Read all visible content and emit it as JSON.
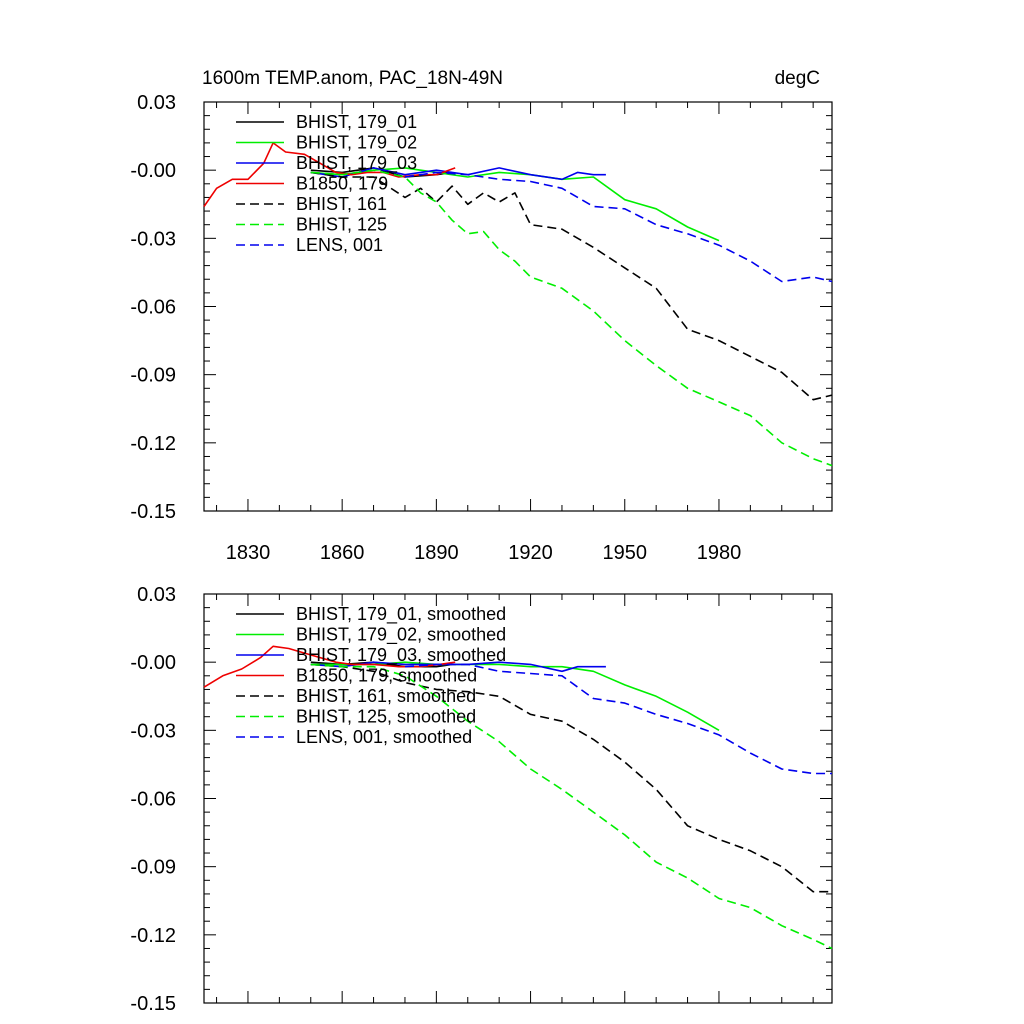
{
  "title_left": "1600m TEMP.anom, PAC_18N-49N",
  "title_right": "degC",
  "chart_data": [
    {
      "type": "line",
      "panel": "top",
      "ylim": [
        -0.15,
        0.03
      ],
      "xlim": [
        1816,
        2016
      ],
      "yticks": [
        0.03,
        -0.0,
        -0.03,
        -0.06,
        -0.09,
        -0.12,
        -0.15
      ],
      "ytick_labels": [
        "0.03",
        "-0.00",
        "-0.03",
        "-0.06",
        "-0.09",
        "-0.12",
        "-0.15"
      ],
      "xticks": [
        1830,
        1860,
        1890,
        1920,
        1950,
        1980
      ],
      "xtick_labels": [
        "1830",
        "1860",
        "1890",
        "1920",
        "1950",
        "1980"
      ],
      "grid": false,
      "legend_position": "top-left",
      "series": [
        {
          "name": "BHIST, 179_01",
          "color": "#000000",
          "dash": "solid",
          "points": [
            [
              1850,
              0.0
            ],
            [
              1860,
              -0.001
            ],
            [
              1870,
              0.001
            ],
            [
              1880,
              -0.003
            ],
            [
              1890,
              -0.002
            ],
            [
              1895,
              -0.001
            ]
          ]
        },
        {
          "name": "BHIST, 179_02",
          "color": "#00ee00",
          "dash": "solid",
          "points": [
            [
              1850,
              -0.001
            ],
            [
              1860,
              -0.002
            ],
            [
              1870,
              0.0
            ],
            [
              1880,
              0.001
            ],
            [
              1890,
              -0.001
            ],
            [
              1900,
              -0.003
            ],
            [
              1910,
              -0.001
            ],
            [
              1920,
              -0.002
            ],
            [
              1930,
              -0.004
            ],
            [
              1940,
              -0.003
            ],
            [
              1950,
              -0.013
            ],
            [
              1960,
              -0.017
            ],
            [
              1970,
              -0.025
            ],
            [
              1980,
              -0.031
            ]
          ]
        },
        {
          "name": "BHIST, 179_03",
          "color": "#0000ee",
          "dash": "solid",
          "points": [
            [
              1850,
              -0.001
            ],
            [
              1860,
              -0.003
            ],
            [
              1870,
              0.001
            ],
            [
              1880,
              -0.002
            ],
            [
              1890,
              0.0
            ],
            [
              1900,
              -0.002
            ],
            [
              1910,
              0.001
            ],
            [
              1920,
              -0.002
            ],
            [
              1930,
              -0.004
            ],
            [
              1935,
              -0.001
            ],
            [
              1940,
              -0.002
            ],
            [
              1944,
              -0.002
            ]
          ]
        },
        {
          "name": "B1850, 179",
          "color": "#ee0000",
          "dash": "solid",
          "points": [
            [
              1816,
              -0.016
            ],
            [
              1820,
              -0.008
            ],
            [
              1825,
              -0.004
            ],
            [
              1830,
              -0.004
            ],
            [
              1835,
              0.003
            ],
            [
              1838,
              0.012
            ],
            [
              1842,
              0.008
            ],
            [
              1848,
              0.007
            ],
            [
              1853,
              0.003
            ],
            [
              1858,
              -0.001
            ],
            [
              1863,
              -0.002
            ],
            [
              1868,
              -0.001
            ],
            [
              1873,
              -0.001
            ],
            [
              1878,
              -0.003
            ],
            [
              1885,
              -0.002
            ],
            [
              1890,
              -0.002
            ],
            [
              1896,
              0.001
            ]
          ]
        },
        {
          "name": "BHIST, 161",
          "color": "#000000",
          "dash": "dashed",
          "points": [
            [
              1850,
              -0.001
            ],
            [
              1860,
              -0.003
            ],
            [
              1870,
              -0.003
            ],
            [
              1880,
              -0.012
            ],
            [
              1885,
              -0.008
            ],
            [
              1890,
              -0.014
            ],
            [
              1895,
              -0.007
            ],
            [
              1900,
              -0.015
            ],
            [
              1905,
              -0.01
            ],
            [
              1910,
              -0.014
            ],
            [
              1915,
              -0.01
            ],
            [
              1920,
              -0.024
            ],
            [
              1930,
              -0.026
            ],
            [
              1940,
              -0.034
            ],
            [
              1950,
              -0.043
            ],
            [
              1960,
              -0.052
            ],
            [
              1970,
              -0.07
            ],
            [
              1980,
              -0.075
            ],
            [
              1990,
              -0.082
            ],
            [
              2000,
              -0.089
            ],
            [
              2010,
              -0.101
            ],
            [
              2016,
              -0.099
            ]
          ]
        },
        {
          "name": "BHIST, 125",
          "color": "#00ee00",
          "dash": "dashed",
          "points": [
            [
              1850,
              -0.001
            ],
            [
              1860,
              -0.002
            ],
            [
              1870,
              0.0
            ],
            [
              1880,
              -0.003
            ],
            [
              1885,
              -0.01
            ],
            [
              1890,
              -0.014
            ],
            [
              1895,
              -0.022
            ],
            [
              1900,
              -0.028
            ],
            [
              1905,
              -0.027
            ],
            [
              1910,
              -0.035
            ],
            [
              1915,
              -0.04
            ],
            [
              1920,
              -0.047
            ],
            [
              1930,
              -0.052
            ],
            [
              1940,
              -0.062
            ],
            [
              1950,
              -0.075
            ],
            [
              1960,
              -0.086
            ],
            [
              1970,
              -0.096
            ],
            [
              1980,
              -0.102
            ],
            [
              1990,
              -0.108
            ],
            [
              2000,
              -0.12
            ],
            [
              2010,
              -0.127
            ],
            [
              2016,
              -0.13
            ]
          ]
        },
        {
          "name": "LENS, 001",
          "color": "#0000ee",
          "dash": "dashed",
          "points": [
            [
              1880,
              -0.003
            ],
            [
              1890,
              -0.001
            ],
            [
              1900,
              -0.002
            ],
            [
              1910,
              -0.004
            ],
            [
              1920,
              -0.005
            ],
            [
              1930,
              -0.008
            ],
            [
              1940,
              -0.016
            ],
            [
              1950,
              -0.017
            ],
            [
              1960,
              -0.024
            ],
            [
              1970,
              -0.028
            ],
            [
              1980,
              -0.033
            ],
            [
              1990,
              -0.04
            ],
            [
              2000,
              -0.049
            ],
            [
              2010,
              -0.047
            ],
            [
              2016,
              -0.049
            ]
          ]
        }
      ]
    },
    {
      "type": "line",
      "panel": "bottom",
      "ylim": [
        -0.15,
        0.03
      ],
      "xlim": [
        1816,
        2016
      ],
      "yticks": [
        0.03,
        -0.0,
        -0.03,
        -0.06,
        -0.09,
        -0.12,
        -0.15
      ],
      "ytick_labels": [
        "0.03",
        "-0.00",
        "-0.03",
        "-0.06",
        "-0.09",
        "-0.12",
        "-0.15"
      ],
      "xticks": [
        1830,
        1860,
        1890,
        1920,
        1950,
        1980
      ],
      "grid": false,
      "legend_position": "top-left",
      "series": [
        {
          "name": "BHIST, 179_01, smoothed",
          "color": "#000000",
          "dash": "solid",
          "points": [
            [
              1850,
              0.0
            ],
            [
              1860,
              -0.001
            ],
            [
              1870,
              0.0
            ],
            [
              1880,
              -0.002
            ],
            [
              1890,
              -0.002
            ],
            [
              1895,
              -0.001
            ]
          ]
        },
        {
          "name": "BHIST, 179_02, smoothed",
          "color": "#00ee00",
          "dash": "solid",
          "points": [
            [
              1850,
              -0.001
            ],
            [
              1860,
              -0.001
            ],
            [
              1870,
              -0.001
            ],
            [
              1880,
              0.0
            ],
            [
              1890,
              -0.001
            ],
            [
              1900,
              -0.001
            ],
            [
              1910,
              -0.001
            ],
            [
              1920,
              -0.002
            ],
            [
              1930,
              -0.002
            ],
            [
              1940,
              -0.004
            ],
            [
              1950,
              -0.01
            ],
            [
              1960,
              -0.015
            ],
            [
              1970,
              -0.022
            ],
            [
              1980,
              -0.03
            ]
          ]
        },
        {
          "name": "BHIST, 179_03, smoothed",
          "color": "#0000ee",
          "dash": "solid",
          "points": [
            [
              1850,
              -0.001
            ],
            [
              1860,
              -0.002
            ],
            [
              1870,
              0.0
            ],
            [
              1880,
              -0.001
            ],
            [
              1890,
              -0.001
            ],
            [
              1900,
              -0.001
            ],
            [
              1910,
              0.0
            ],
            [
              1920,
              -0.001
            ],
            [
              1930,
              -0.004
            ],
            [
              1935,
              -0.002
            ],
            [
              1940,
              -0.002
            ],
            [
              1944,
              -0.002
            ]
          ]
        },
        {
          "name": "B1850, 179, smoothed",
          "color": "#ee0000",
          "dash": "solid",
          "points": [
            [
              1816,
              -0.011
            ],
            [
              1822,
              -0.006
            ],
            [
              1828,
              -0.003
            ],
            [
              1834,
              0.002
            ],
            [
              1838,
              0.007
            ],
            [
              1843,
              0.006
            ],
            [
              1848,
              0.004
            ],
            [
              1853,
              0.002
            ],
            [
              1858,
              0.0
            ],
            [
              1863,
              -0.001
            ],
            [
              1870,
              -0.001
            ],
            [
              1878,
              -0.002
            ],
            [
              1885,
              -0.002
            ],
            [
              1891,
              -0.001
            ],
            [
              1896,
              0.0
            ]
          ]
        },
        {
          "name": "BHIST, 161, smoothed",
          "color": "#000000",
          "dash": "dashed",
          "points": [
            [
              1850,
              -0.001
            ],
            [
              1860,
              -0.002
            ],
            [
              1870,
              -0.004
            ],
            [
              1880,
              -0.009
            ],
            [
              1890,
              -0.012
            ],
            [
              1900,
              -0.013
            ],
            [
              1910,
              -0.015
            ],
            [
              1920,
              -0.023
            ],
            [
              1930,
              -0.026
            ],
            [
              1940,
              -0.034
            ],
            [
              1950,
              -0.044
            ],
            [
              1960,
              -0.056
            ],
            [
              1970,
              -0.072
            ],
            [
              1980,
              -0.078
            ],
            [
              1990,
              -0.083
            ],
            [
              2000,
              -0.09
            ],
            [
              2010,
              -0.101
            ],
            [
              2016,
              -0.101
            ]
          ]
        },
        {
          "name": "BHIST, 125, smoothed",
          "color": "#00ee00",
          "dash": "dashed",
          "points": [
            [
              1850,
              -0.001
            ],
            [
              1860,
              -0.002
            ],
            [
              1870,
              -0.002
            ],
            [
              1880,
              -0.006
            ],
            [
              1890,
              -0.015
            ],
            [
              1900,
              -0.026
            ],
            [
              1910,
              -0.035
            ],
            [
              1920,
              -0.047
            ],
            [
              1930,
              -0.056
            ],
            [
              1940,
              -0.066
            ],
            [
              1950,
              -0.076
            ],
            [
              1960,
              -0.088
            ],
            [
              1970,
              -0.095
            ],
            [
              1980,
              -0.104
            ],
            [
              1990,
              -0.108
            ],
            [
              2000,
              -0.116
            ],
            [
              2010,
              -0.122
            ],
            [
              2016,
              -0.126
            ]
          ]
        },
        {
          "name": "LENS, 001, smoothed",
          "color": "#0000ee",
          "dash": "dashed",
          "points": [
            [
              1880,
              -0.002
            ],
            [
              1890,
              -0.001
            ],
            [
              1900,
              -0.001
            ],
            [
              1910,
              -0.004
            ],
            [
              1920,
              -0.005
            ],
            [
              1930,
              -0.006
            ],
            [
              1940,
              -0.016
            ],
            [
              1950,
              -0.018
            ],
            [
              1960,
              -0.023
            ],
            [
              1970,
              -0.027
            ],
            [
              1980,
              -0.032
            ],
            [
              1990,
              -0.04
            ],
            [
              2000,
              -0.047
            ],
            [
              2010,
              -0.049
            ],
            [
              2016,
              -0.049
            ]
          ]
        }
      ]
    }
  ]
}
